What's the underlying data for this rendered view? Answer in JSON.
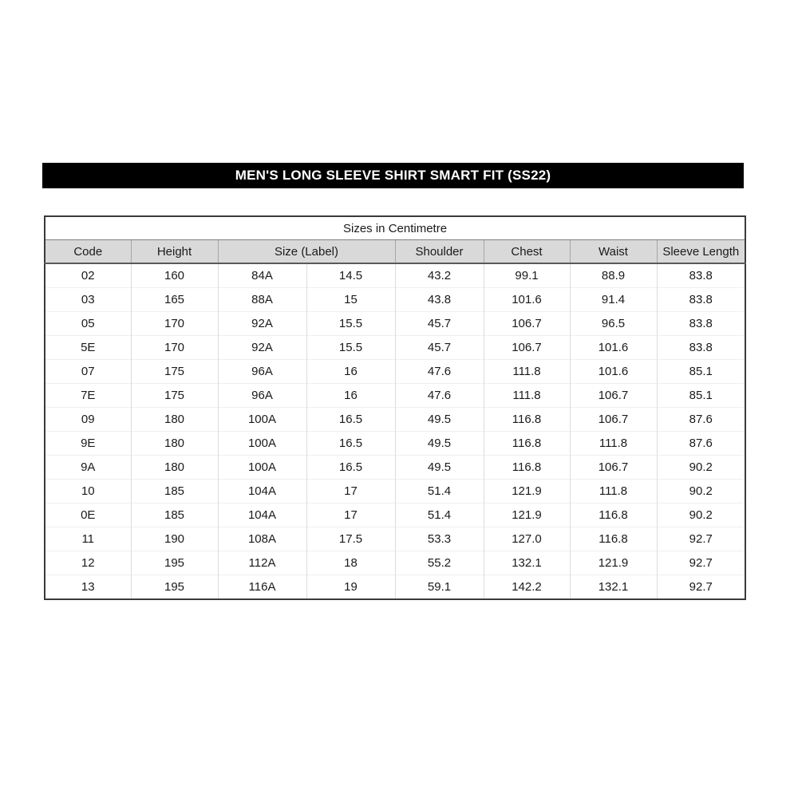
{
  "title": "MEN'S LONG SLEEVE SHIRT SMART FIT (SS22)",
  "colors": {
    "banner_bg": "#000000",
    "banner_text": "#ffffff",
    "header_row_bg": "#d9d9d9",
    "table_border": "#3a3a3a",
    "body_text": "#1a1a1a"
  },
  "table": {
    "caption": "Sizes in Centimetre",
    "columns": [
      {
        "label": "Code",
        "span": 1
      },
      {
        "label": "Height",
        "span": 1
      },
      {
        "label": "Size (Label)",
        "span": 2
      },
      {
        "label": "Shoulder",
        "span": 1
      },
      {
        "label": "Chest",
        "span": 1
      },
      {
        "label": "Waist",
        "span": 1
      },
      {
        "label": "Sleeve Length",
        "span": 1
      }
    ],
    "rows": [
      [
        "02",
        "160",
        "84A",
        "14.5",
        "43.2",
        "99.1",
        "88.9",
        "83.8"
      ],
      [
        "03",
        "165",
        "88A",
        "15",
        "43.8",
        "101.6",
        "91.4",
        "83.8"
      ],
      [
        "05",
        "170",
        "92A",
        "15.5",
        "45.7",
        "106.7",
        "96.5",
        "83.8"
      ],
      [
        "5E",
        "170",
        "92A",
        "15.5",
        "45.7",
        "106.7",
        "101.6",
        "83.8"
      ],
      [
        "07",
        "175",
        "96A",
        "16",
        "47.6",
        "111.8",
        "101.6",
        "85.1"
      ],
      [
        "7E",
        "175",
        "96A",
        "16",
        "47.6",
        "111.8",
        "106.7",
        "85.1"
      ],
      [
        "09",
        "180",
        "100A",
        "16.5",
        "49.5",
        "116.8",
        "106.7",
        "87.6"
      ],
      [
        "9E",
        "180",
        "100A",
        "16.5",
        "49.5",
        "116.8",
        "111.8",
        "87.6"
      ],
      [
        "9A",
        "180",
        "100A",
        "16.5",
        "49.5",
        "116.8",
        "106.7",
        "90.2"
      ],
      [
        "10",
        "185",
        "104A",
        "17",
        "51.4",
        "121.9",
        "111.8",
        "90.2"
      ],
      [
        "0E",
        "185",
        "104A",
        "17",
        "51.4",
        "121.9",
        "116.8",
        "90.2"
      ],
      [
        "11",
        "190",
        "108A",
        "17.5",
        "53.3",
        "127.0",
        "116.8",
        "92.7"
      ],
      [
        "12",
        "195",
        "112A",
        "18",
        "55.2",
        "132.1",
        "121.9",
        "92.7"
      ],
      [
        "13",
        "195",
        "116A",
        "19",
        "59.1",
        "142.2",
        "132.1",
        "92.7"
      ]
    ]
  }
}
